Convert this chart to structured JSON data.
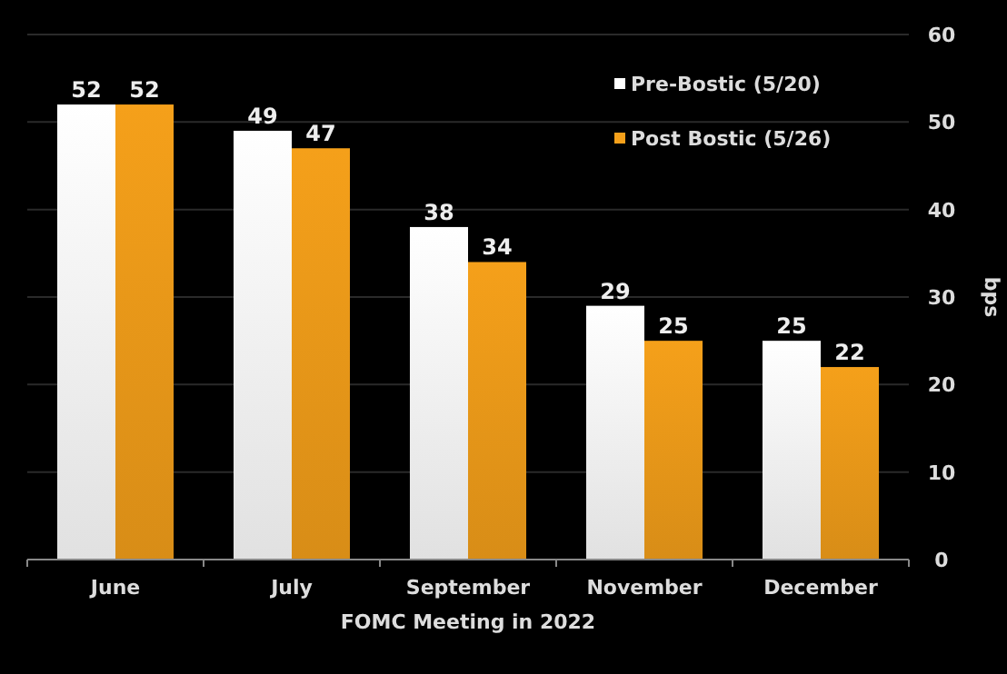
{
  "chart_data": {
    "type": "bar",
    "xlabel": "FOMC Meeting in 2022",
    "ylabel": "bps",
    "categories": [
      "June",
      "July",
      "September",
      "November",
      "December"
    ],
    "series": [
      {
        "name": "Pre-Bostic (5/20)",
        "color": "#ffffff",
        "values": [
          52,
          49,
          38,
          29,
          25
        ]
      },
      {
        "name": "Post Bostic (5/26)",
        "color": "#f5a01a",
        "values": [
          52,
          47,
          34,
          25,
          22
        ]
      }
    ],
    "ylim": [
      0,
      60
    ],
    "yticks": [
      0,
      10,
      20,
      30,
      40,
      50,
      60
    ],
    "grid": "y",
    "legend": "top right",
    "data_labels": true
  }
}
